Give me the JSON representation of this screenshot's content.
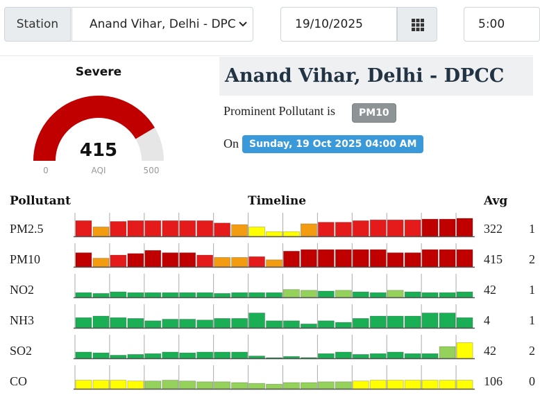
{
  "controls": {
    "station_label": "Station",
    "station_value": "Anand Vihar, Delhi - DPC",
    "date_value": "19/10/2025",
    "time_value": "5:00"
  },
  "gauge": {
    "category": "Severe",
    "value": "415",
    "unit_label": "AQI",
    "min_label": "0",
    "max_label": "500",
    "fraction": 0.83,
    "fill_color": "#c00000",
    "track_color": "#e6e6e6"
  },
  "info": {
    "station_name": "Anand Vihar, Delhi - DPCC",
    "prominent_prefix": "Prominent Pollutant is",
    "prominent_pollutant": "PM10",
    "on_prefix": "On",
    "datetime": "Sunday, 19 Oct 2025 04:00 AM"
  },
  "table": {
    "col_pollutant": "Pollutant",
    "col_timeline": "Timeline",
    "col_avg": "Avg",
    "rows": [
      {
        "name": "PM2.5",
        "avg": "322",
        "extra": "1",
        "bars": [
          1.0,
          0.6,
          0.95,
          1.0,
          1.0,
          1.0,
          1.0,
          1.0,
          0.85,
          0.75,
          0.6,
          0.3,
          0.3,
          0.8,
          0.9,
          0.9,
          1.0,
          1.05,
          1.05,
          1.05,
          1.1,
          1.1,
          1.15
        ],
        "colors": [
          "#e51b1b",
          "#f39c12",
          "#e51b1b",
          "#e51b1b",
          "#e51b1b",
          "#e51b1b",
          "#e51b1b",
          "#e51b1b",
          "#e51b1b",
          "#f39c12",
          "#ffff00",
          "#ffff00",
          "#ffff00",
          "#f39c12",
          "#e51b1b",
          "#e51b1b",
          "#e51b1b",
          "#e51b1b",
          "#e51b1b",
          "#e51b1b",
          "#c00000",
          "#c00000",
          "#c00000"
        ]
      },
      {
        "name": "PM10",
        "avg": "415",
        "extra": "2",
        "bars": [
          0.9,
          0.55,
          0.75,
          0.85,
          1.05,
          0.9,
          0.9,
          0.75,
          0.6,
          0.6,
          0.65,
          0.45,
          1.0,
          1.1,
          1.1,
          1.1,
          1.1,
          1.1,
          0.9,
          0.9,
          1.1,
          1.1,
          1.1
        ],
        "colors": [
          "#c00000",
          "#f39c12",
          "#e51b1b",
          "#c00000",
          "#c00000",
          "#c00000",
          "#c00000",
          "#e51b1b",
          "#f39c12",
          "#f39c12",
          "#e51b1b",
          "#f39c12",
          "#c00000",
          "#c00000",
          "#c00000",
          "#c00000",
          "#c00000",
          "#c00000",
          "#c00000",
          "#c00000",
          "#c00000",
          "#c00000",
          "#c00000"
        ]
      },
      {
        "name": "NO2",
        "avg": "42",
        "extra": "1",
        "bars": [
          0.3,
          0.25,
          0.35,
          0.3,
          0.3,
          0.3,
          0.3,
          0.3,
          0.25,
          0.3,
          0.3,
          0.3,
          0.5,
          0.45,
          0.4,
          0.45,
          0.35,
          0.3,
          0.45,
          0.35,
          0.3,
          0.3,
          0.35
        ],
        "colors": [
          "#1aaf54",
          "#1aaf54",
          "#1aaf54",
          "#1aaf54",
          "#1aaf54",
          "#1aaf54",
          "#1aaf54",
          "#1aaf54",
          "#1aaf54",
          "#1aaf54",
          "#1aaf54",
          "#1aaf54",
          "#94d25c",
          "#94d25c",
          "#1aaf54",
          "#94d25c",
          "#1aaf54",
          "#1aaf54",
          "#94d25c",
          "#1aaf54",
          "#1aaf54",
          "#1aaf54",
          "#1aaf54"
        ]
      },
      {
        "name": "NH3",
        "avg": "4",
        "extra": "1",
        "bars": [
          0.65,
          0.75,
          0.65,
          0.6,
          0.45,
          0.55,
          0.55,
          0.5,
          0.6,
          0.6,
          0.95,
          0.45,
          0.45,
          0.25,
          0.45,
          0.35,
          0.6,
          0.75,
          0.75,
          0.75,
          0.95,
          0.95,
          0.65
        ],
        "colors": [
          "#1aaf54",
          "#1aaf54",
          "#1aaf54",
          "#1aaf54",
          "#1aaf54",
          "#1aaf54",
          "#1aaf54",
          "#1aaf54",
          "#1aaf54",
          "#1aaf54",
          "#1aaf54",
          "#1aaf54",
          "#1aaf54",
          "#1aaf54",
          "#1aaf54",
          "#1aaf54",
          "#1aaf54",
          "#1aaf54",
          "#1aaf54",
          "#1aaf54",
          "#1aaf54",
          "#1aaf54",
          "#1aaf54"
        ]
      },
      {
        "name": "SO2",
        "avg": "42",
        "extra": "2",
        "bars": [
          0.4,
          0.35,
          0.2,
          0.25,
          0.3,
          0.4,
          0.35,
          0.4,
          0.4,
          0.4,
          0.15,
          0.03,
          0.12,
          0.05,
          0.3,
          0.4,
          0.25,
          0.3,
          0.4,
          0.3,
          0.3,
          0.75,
          1.0
        ],
        "colors": [
          "#1aaf54",
          "#1aaf54",
          "#1aaf54",
          "#1aaf54",
          "#1aaf54",
          "#1aaf54",
          "#1aaf54",
          "#1aaf54",
          "#1aaf54",
          "#1aaf54",
          "#1aaf54",
          "#1aaf54",
          "#1aaf54",
          "#1aaf54",
          "#1aaf54",
          "#1aaf54",
          "#1aaf54",
          "#1aaf54",
          "#1aaf54",
          "#1aaf54",
          "#1aaf54",
          "#94d25c",
          "#ffff00"
        ]
      },
      {
        "name": "CO",
        "avg": "106",
        "extra": "0",
        "bars": [
          0.55,
          0.55,
          0.55,
          0.5,
          0.5,
          0.55,
          0.5,
          0.45,
          0.45,
          0.4,
          0.35,
          0.3,
          0.4,
          0.4,
          0.45,
          0.45,
          0.5,
          0.55,
          0.55,
          0.55,
          0.55,
          0.55,
          0.55
        ],
        "colors": [
          "#ffff00",
          "#ffff00",
          "#ffff00",
          "#ffff00",
          "#94d25c",
          "#94d25c",
          "#94d25c",
          "#94d25c",
          "#94d25c",
          "#94d25c",
          "#94d25c",
          "#94d25c",
          "#94d25c",
          "#94d25c",
          "#94d25c",
          "#94d25c",
          "#ffff00",
          "#ffff00",
          "#ffff00",
          "#ffff00",
          "#ffff00",
          "#ffff00",
          "#ffff00"
        ]
      }
    ]
  }
}
